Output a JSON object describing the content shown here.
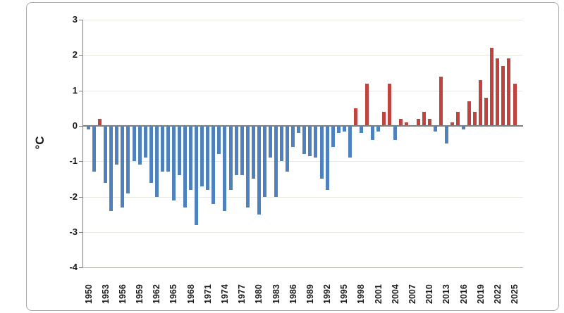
{
  "chart_data": {
    "type": "bar",
    "title": "",
    "ylabel": "°C",
    "xlabel": "",
    "ylim": [
      -4,
      3
    ],
    "grid": true,
    "legend": false,
    "ytick_labels": [
      "3",
      "2",
      "1",
      "0",
      "-1",
      "-2",
      "-3",
      "-4"
    ],
    "ytick_values": [
      3,
      2,
      1,
      0,
      -1,
      -2,
      -3,
      -4
    ],
    "xtick_years": [
      1950,
      1953,
      1956,
      1959,
      1962,
      1965,
      1968,
      1971,
      1974,
      1977,
      1980,
      1983,
      1986,
      1989,
      1992,
      1995,
      1998,
      2001,
      2004,
      2007,
      2010,
      2013,
      2016,
      2019,
      2022,
      2025
    ],
    "years": [
      1950,
      1951,
      1952,
      1953,
      1954,
      1955,
      1956,
      1957,
      1958,
      1959,
      1960,
      1961,
      1962,
      1963,
      1964,
      1965,
      1966,
      1967,
      1968,
      1969,
      1970,
      1971,
      1972,
      1973,
      1974,
      1975,
      1976,
      1977,
      1978,
      1979,
      1980,
      1981,
      1982,
      1983,
      1984,
      1985,
      1986,
      1987,
      1988,
      1989,
      1990,
      1991,
      1992,
      1993,
      1994,
      1995,
      1996,
      1997,
      1998,
      1999,
      2000,
      2001,
      2002,
      2003,
      2004,
      2005,
      2006,
      2007,
      2008,
      2009,
      2010,
      2011,
      2012,
      2013,
      2014,
      2015,
      2016,
      2017,
      2018,
      2019,
      2020,
      2021,
      2022,
      2023,
      2024,
      2025
    ],
    "values": [
      -0.1,
      -1.3,
      0.2,
      -1.6,
      -2.4,
      -1.1,
      -2.3,
      -1.9,
      -1.0,
      -1.1,
      -0.9,
      -1.6,
      -2.0,
      -1.3,
      -1.3,
      -2.1,
      -1.4,
      -2.3,
      -1.8,
      -2.8,
      -1.7,
      -1.8,
      -2.2,
      -0.8,
      -2.4,
      -1.8,
      -1.4,
      -1.4,
      -2.3,
      -1.5,
      -2.5,
      -2.0,
      -0.9,
      -2.0,
      -1.0,
      -1.3,
      -0.6,
      -0.2,
      -0.8,
      -0.85,
      -0.9,
      -1.5,
      -1.8,
      -0.6,
      -0.2,
      -0.15,
      -0.9,
      0.5,
      -0.2,
      1.2,
      -0.4,
      -0.15,
      0.4,
      1.2,
      -0.4,
      0.2,
      0.1,
      0.0,
      0.2,
      0.4,
      0.2,
      -0.15,
      1.4,
      -0.5,
      0.1,
      0.4,
      -0.1,
      0.7,
      0.4,
      1.3,
      0.8,
      2.2,
      1.9,
      1.7,
      1.9,
      1.2
    ],
    "colors": {
      "positive_bar": "#C2423D",
      "negative_bar": "#4E81BD",
      "gridline": "#E9E9E0",
      "axis_line": "#808080",
      "zero_line": "#7F7F7F",
      "text": "#1a1a1a",
      "frame_border": "#ABABAB",
      "background": "#FFFFFF"
    }
  }
}
